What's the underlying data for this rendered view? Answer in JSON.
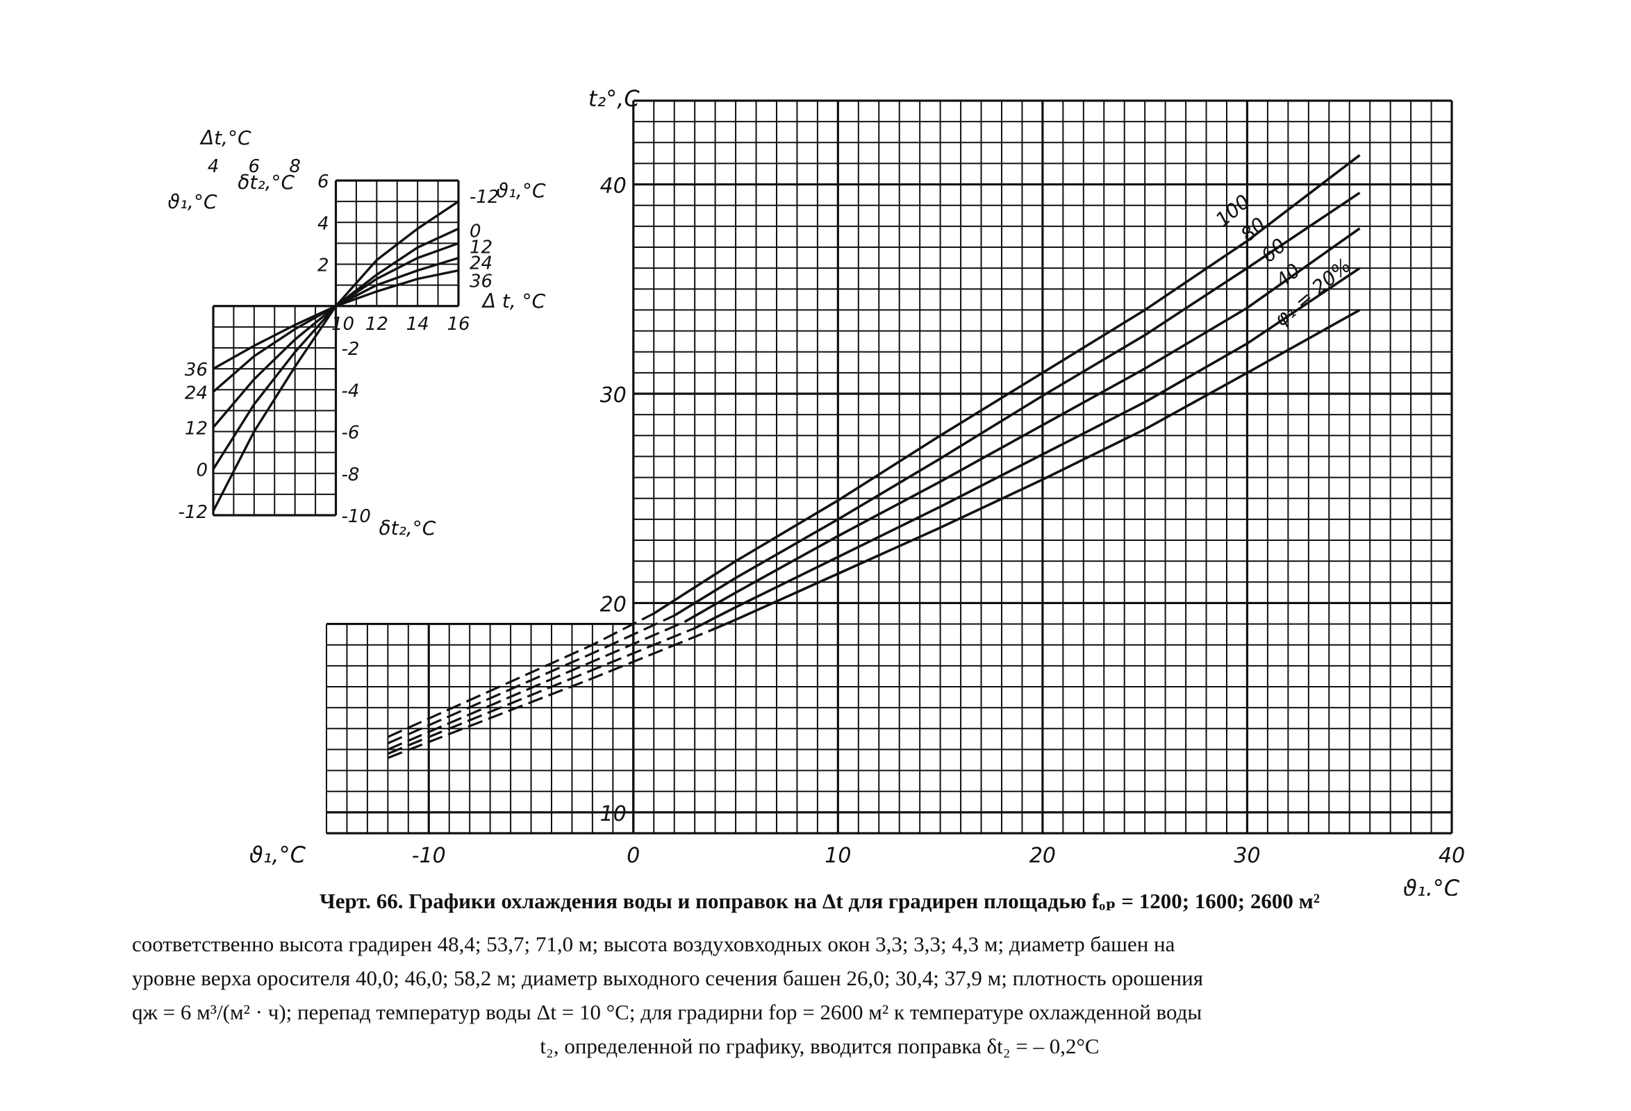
{
  "chart_data": [
    {
      "id": "main",
      "type": "line",
      "xlabel": "ϑ₁,°C",
      "xlabel_left": "ϑ₁,°C",
      "ylabel": "t₂°,C",
      "x_tick_labels": [
        "-10",
        "0",
        "10",
        "20",
        "30",
        "40"
      ],
      "y_tick_labels": [
        "10",
        "20",
        "30",
        "40"
      ],
      "xlim": [
        -15,
        40
      ],
      "ylim": [
        9,
        44
      ],
      "grid": true,
      "series": [
        {
          "name": "100",
          "x": [
            -12,
            -2,
            1,
            5,
            10,
            15,
            20,
            25,
            30,
            35.5
          ],
          "y": [
            13.6,
            18.0,
            19.5,
            22.0,
            24.9,
            28.0,
            31.0,
            34.0,
            37.3,
            41.4
          ]
        },
        {
          "name": "80",
          "x": [
            -12,
            -2,
            2,
            5,
            10,
            15,
            20,
            25,
            30,
            35.5
          ],
          "y": [
            13.3,
            17.6,
            19.4,
            21.2,
            24.0,
            26.9,
            29.9,
            32.8,
            36.0,
            39.6
          ]
        },
        {
          "name": "60",
          "x": [
            -12,
            -2,
            2.5,
            5,
            10,
            15,
            20,
            25,
            30,
            35.5
          ],
          "y": [
            13.0,
            17.2,
            19.1,
            20.5,
            23.2,
            25.8,
            28.5,
            31.2,
            34.1,
            37.9
          ]
        },
        {
          "name": "40",
          "x": [
            -12,
            -2,
            3,
            5,
            10,
            15,
            20,
            25,
            30,
            35.5
          ],
          "y": [
            12.8,
            16.8,
            18.8,
            19.8,
            22.2,
            24.6,
            27.1,
            29.6,
            32.4,
            36.0
          ]
        },
        {
          "name": "φ₁ = 20%",
          "x": [
            -12,
            -2,
            3.8,
            5,
            10,
            15,
            20,
            25,
            30,
            35.5
          ],
          "y": [
            12.6,
            16.4,
            18.7,
            19.2,
            21.4,
            23.6,
            25.9,
            28.3,
            31.0,
            34.0
          ]
        }
      ],
      "dashed_below_x": [
        1,
        2,
        2.5,
        3,
        3.8
      ],
      "curve_labels": [
        "100",
        "80",
        "60",
        "40",
        "φ₁ = 20%"
      ]
    },
    {
      "id": "inset",
      "type": "line",
      "xlabel": "Δt,°C",
      "xlabel_right": "Δ t, °C",
      "ylabel_top": "δt₂,°C",
      "ylabel_bottom": "δt₂,°C",
      "theta_label_left": "ϑ₁,°C",
      "theta_label_right": "ϑ₁,°C",
      "x_tick_labels_left": [
        "4",
        "6",
        "8"
      ],
      "x_tick_labels_right": [
        "10",
        "12",
        "14",
        "16"
      ],
      "y_tick_labels_top": [
        "6",
        "4",
        "2"
      ],
      "y_tick_labels_bottom": [
        "-2",
        "-4",
        "-6",
        "-8",
        "-10"
      ],
      "theta_values_left": [
        "36",
        "24",
        "12",
        "0",
        "-12"
      ],
      "theta_values_right": [
        "-12",
        "0",
        "12",
        "24",
        "36"
      ],
      "xlim": [
        4,
        16
      ],
      "ylim": [
        -10,
        6
      ],
      "grid": true,
      "series": [
        {
          "name": "-12",
          "x": [
            4,
            6,
            8,
            10,
            12,
            14,
            16
          ],
          "y": [
            -9.8,
            -6.0,
            -2.9,
            0,
            2.2,
            3.7,
            5.0
          ]
        },
        {
          "name": "0",
          "x": [
            4,
            6,
            8,
            10,
            12,
            14,
            16
          ],
          "y": [
            -7.8,
            -4.7,
            -2.2,
            0,
            1.5,
            2.8,
            3.7
          ]
        },
        {
          "name": "12",
          "x": [
            4,
            6,
            8,
            10,
            12,
            14,
            16
          ],
          "y": [
            -5.8,
            -3.5,
            -1.6,
            0,
            1.3,
            2.3,
            3.0
          ]
        },
        {
          "name": "24",
          "x": [
            4,
            6,
            8,
            10,
            12,
            14,
            16
          ],
          "y": [
            -4.1,
            -2.4,
            -1.1,
            0,
            1.0,
            1.7,
            2.3
          ]
        },
        {
          "name": "36",
          "x": [
            4,
            6,
            8,
            10,
            12,
            14,
            16
          ],
          "y": [
            -3.0,
            -1.9,
            -0.9,
            0,
            0.7,
            1.3,
            1.7
          ]
        }
      ]
    }
  ],
  "caption": {
    "title": "Черт. 66. Графики охлаждения воды и поправок на Δt для градирен площадью fₒₚ = 1200; 1600; 2600 м²",
    "line1": "соответственно высота градирен 48,4; 53,7; 71,0 м; высота воздуховходных окон 3,3; 3,3; 4,3 м; диаметр башен на",
    "line2": "уровне верха оросителя 40,0; 46,0; 58,2 м; диаметр выходного сечения башен 26,0; 30,4; 37,9 м; плотность орошения",
    "line3": "qж = 6 м³/(м² · ч); перепад температур воды Δt = 10 °C; для градирни fор = 2600 м² к температуре охлажденной воды",
    "line4": "t₂, определенной по графику, вводится поправка δt₂ = – 0,2°C"
  }
}
